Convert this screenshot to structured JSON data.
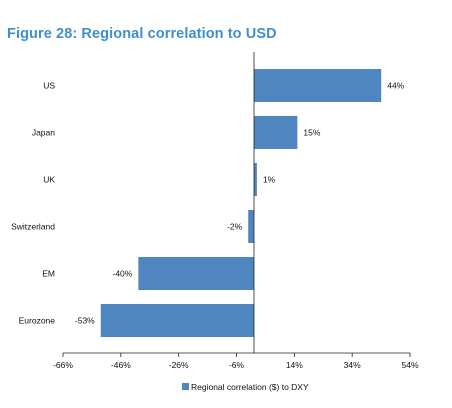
{
  "title": "Figure 28: Regional correlation to USD",
  "chart_data": {
    "type": "bar",
    "orientation": "horizontal",
    "categories": [
      "US",
      "Japan",
      "UK",
      "Switzerland",
      "EM",
      "Eurozone"
    ],
    "series": [
      {
        "name": "Regional correlation ($) to DXY",
        "values": [
          44,
          15,
          1,
          -2,
          -40,
          -53
        ],
        "labels": [
          "44%",
          "15%",
          "1%",
          "-2%",
          "-40%",
          "-53%"
        ],
        "color": "#4f86c0"
      }
    ],
    "x_ticks": [
      -66,
      -46,
      -26,
      -6,
      14,
      34,
      54
    ],
    "x_tick_labels": [
      "-66%",
      "-46%",
      "-26%",
      "-6%",
      "14%",
      "34%",
      "54%"
    ],
    "xlim": [
      -66,
      54
    ],
    "legend_position": "bottom",
    "grid": false
  }
}
